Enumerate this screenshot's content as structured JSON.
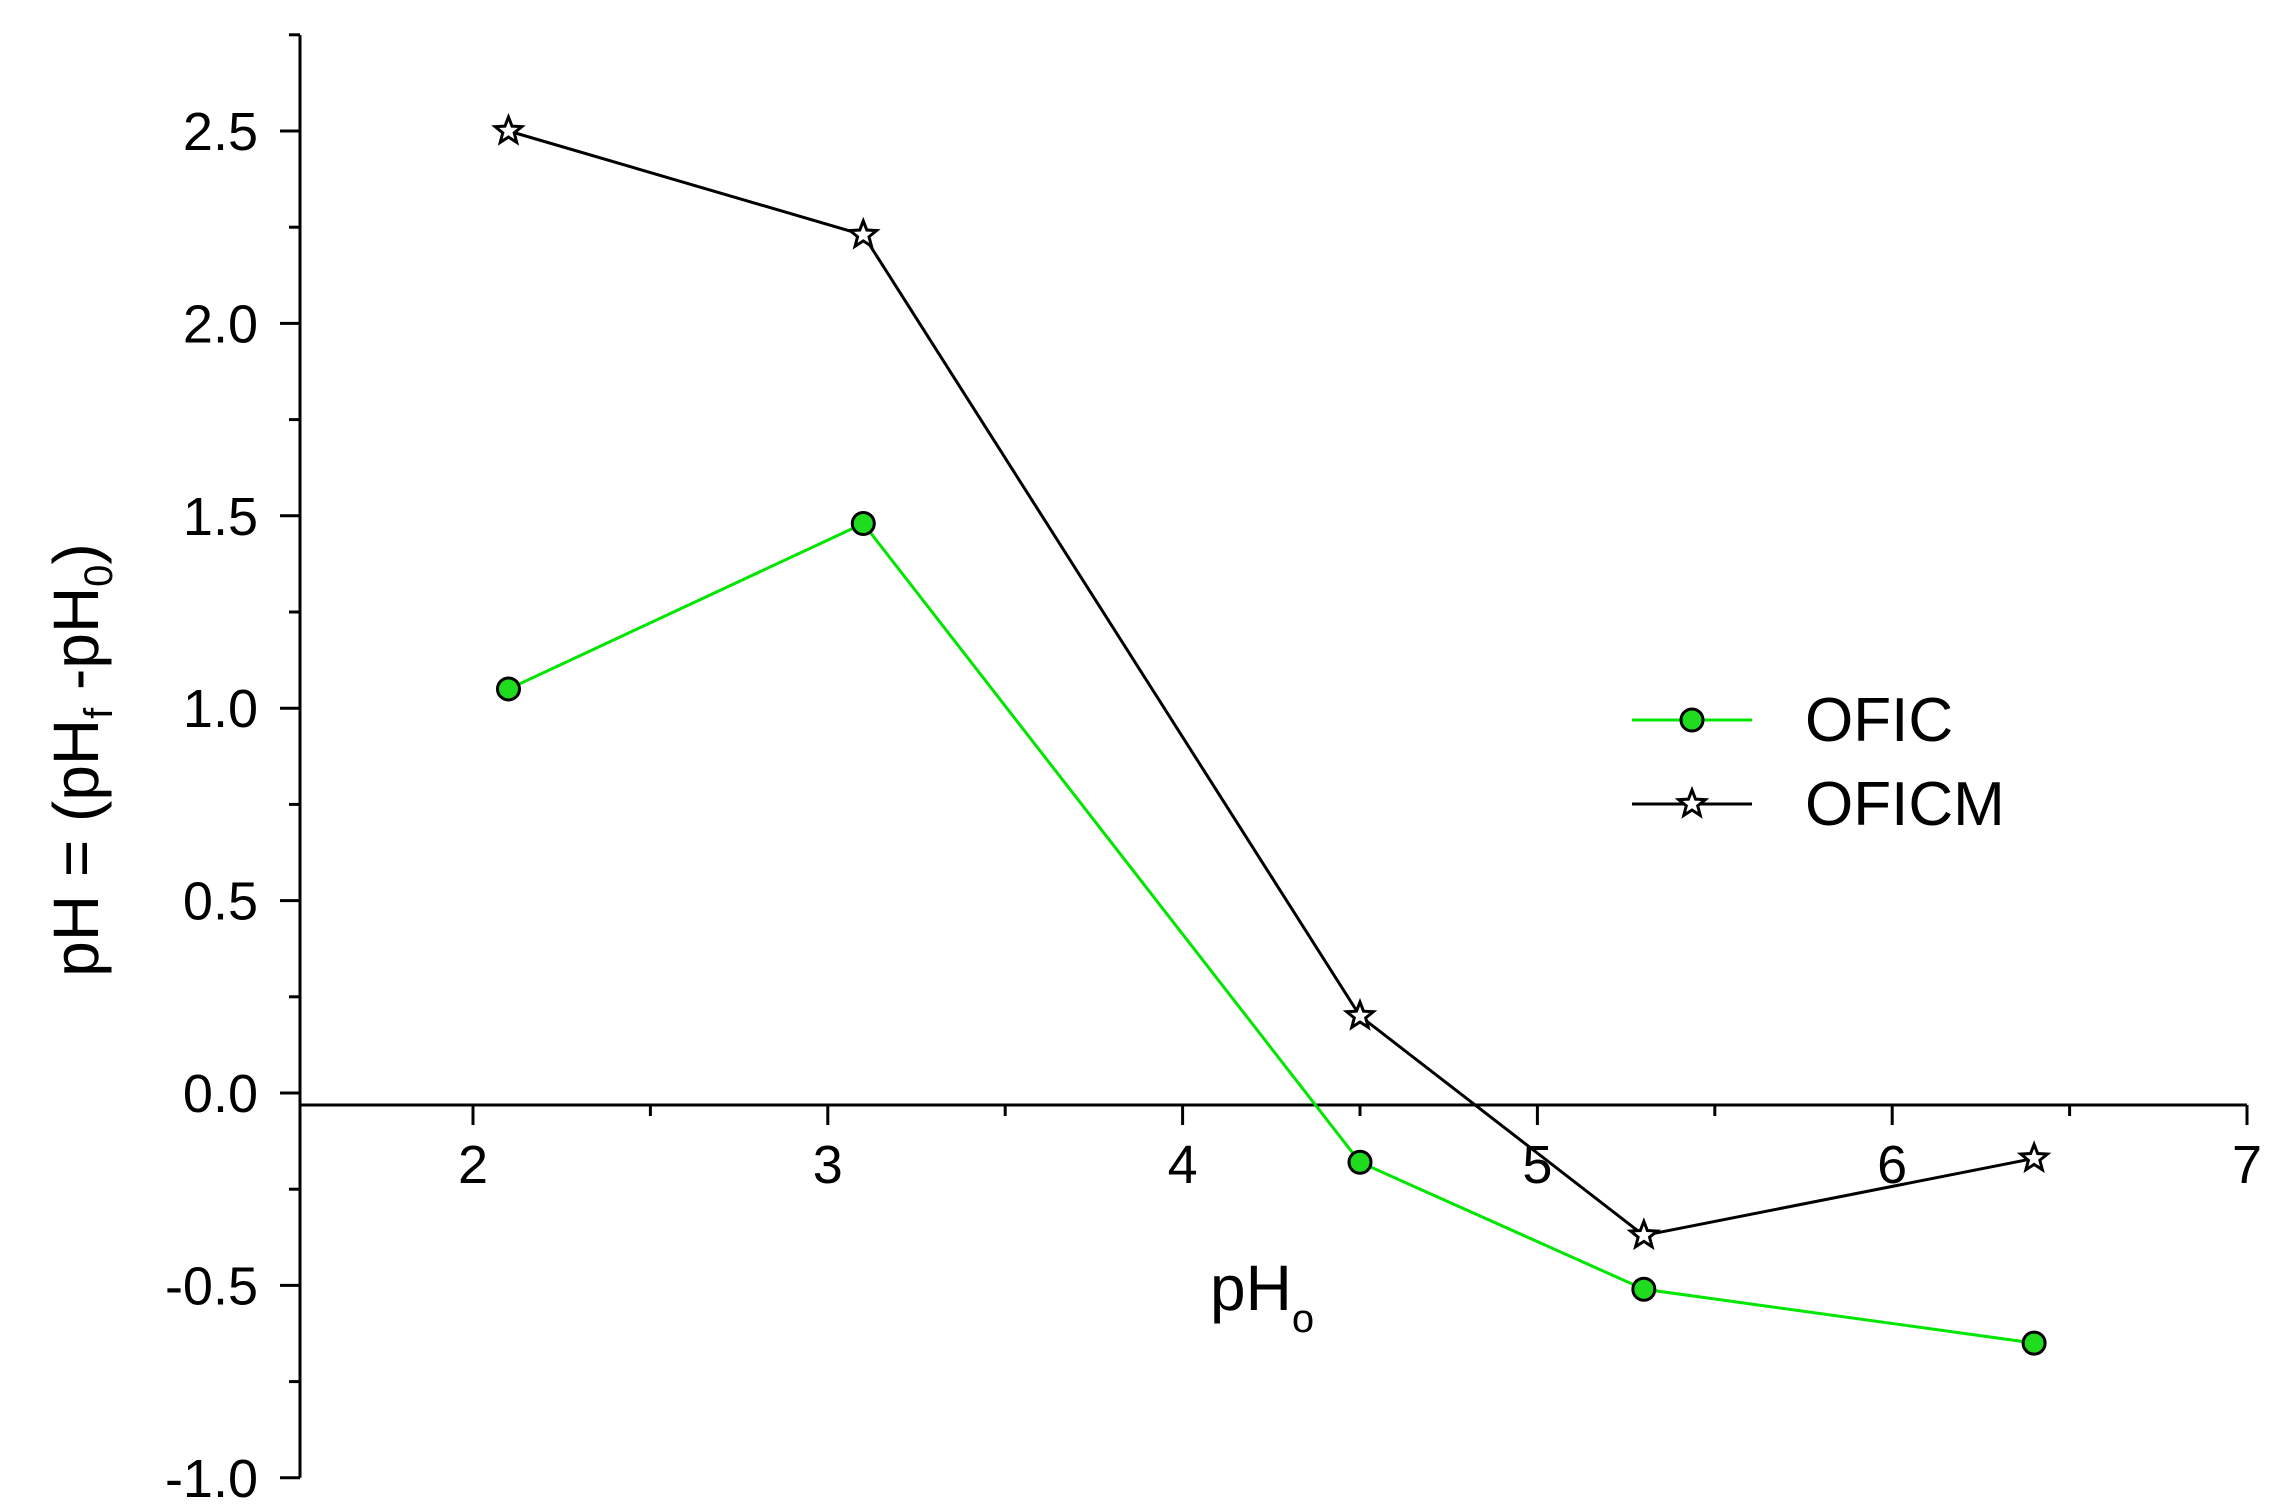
{
  "chart_data": {
    "type": "line",
    "xlabel": {
      "main": "pH",
      "sub": "o"
    },
    "ylabel": {
      "prefix": "pH = (pH",
      "sub1": "f",
      "mid": " -pH",
      "sub2": "0",
      "suffix": ")"
    },
    "xlim": [
      1.5,
      7
    ],
    "ylim": [
      -1.0,
      2.75
    ],
    "x_ticks": [
      "2",
      "3",
      "4",
      "5",
      "6",
      "7"
    ],
    "y_ticks": [
      "-1.0",
      "-0.5",
      "0.0",
      "0.5",
      "1.0",
      "1.5",
      "2.0",
      "2.5"
    ],
    "grid": false,
    "legend_position": "right",
    "series": [
      {
        "name": "OFIC",
        "marker": "circle",
        "color": "#00e600",
        "marker_fill": "#1fdc1f",
        "x": [
          2.1,
          3.1,
          4.5,
          5.3,
          6.4
        ],
        "y": [
          1.05,
          1.48,
          -0.18,
          -0.51,
          -0.65
        ]
      },
      {
        "name": "OFICM",
        "marker": "star",
        "color": "#000000",
        "marker_fill": "#ffffff",
        "x": [
          2.1,
          3.1,
          4.5,
          5.3,
          6.4
        ],
        "y": [
          2.5,
          2.23,
          0.2,
          -0.37,
          -0.17
        ]
      }
    ]
  }
}
